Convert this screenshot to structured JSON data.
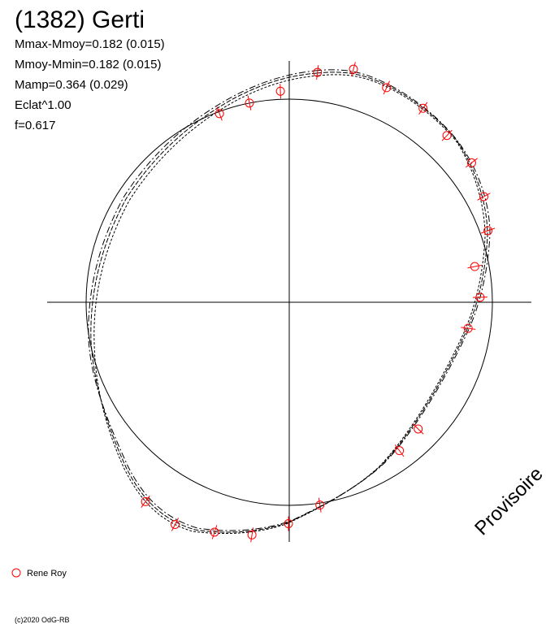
{
  "chart_data": {
    "type": "polar",
    "title": "(1382) Gerti",
    "annotations": [
      "Mmax-Mmoy=0.182 (0.015)",
      "Mmoy-Mmin=0.182 (0.015)",
      "Mamp=0.364 (0.029)",
      "Eclat^1.00",
      "f=0.617"
    ],
    "watermark": "Provisoire",
    "copyright": "(c)2020 OdG-RB",
    "x": [
      83,
      74.6,
      65.6,
      55.4,
      46.6,
      37.4,
      28.5,
      19.8,
      10.9,
      1.5,
      -8.3,
      -44.5,
      -53.4,
      -81.4,
      -90.2,
      -99.1,
      -108,
      -117.2,
      -125.8,
      110.3,
      101.3,
      92.4
    ],
    "series": [
      {
        "name": "Rene Roy",
        "color": "#ff0000",
        "values": [
          1.14,
          1.19,
          1.16,
          1.16,
          1.13,
          1.13,
          1.09,
          1.04,
          0.93,
          0.94,
          0.89,
          0.89,
          0.91,
          1.01,
          1.09,
          1.16,
          1.19,
          1.23,
          1.21,
          0.99,
          1.0,
          1.04
        ]
      }
    ]
  }
}
